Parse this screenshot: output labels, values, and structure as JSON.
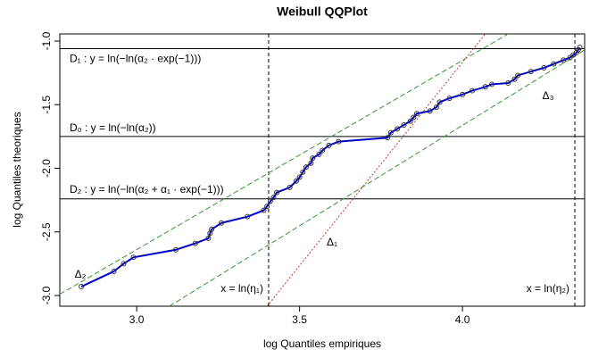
{
  "chart_data": {
    "type": "line",
    "title": "Weibull QQPlot",
    "x_label": "log Quantiles empiriques",
    "y_label": "log Quantiles theoriques",
    "xlim": [
      2.764,
      4.375
    ],
    "ylim": [
      -3.084,
      -0.944
    ],
    "xticks": [
      {
        "value": 3,
        "label": "3.0"
      },
      3.5,
      {
        "value": 4,
        "label": "4.0"
      }
    ],
    "yticks": [
      {
        "value": -1,
        "label": "-1.0"
      },
      -1.5,
      {
        "value": -2,
        "label": "-2.0"
      },
      -2.5,
      {
        "value": -3,
        "label": "-3.0"
      }
    ],
    "color": "#0000cc",
    "x": [
      2.83,
      2.93,
      2.96,
      2.99,
      3.12,
      3.18,
      3.22,
      3.225,
      3.23,
      3.26,
      3.34,
      3.39,
      3.4,
      3.41,
      3.42,
      3.43,
      3.47,
      3.49,
      3.5,
      3.51,
      3.52,
      3.535,
      3.54,
      3.56,
      3.57,
      3.59,
      3.62,
      3.77,
      3.78,
      3.8,
      3.82,
      3.84,
      3.85,
      3.86,
      3.9,
      3.92,
      3.93,
      3.96,
      4.0,
      4.03,
      4.07,
      4.09,
      4.14,
      4.16,
      4.17,
      4.21,
      4.25,
      4.28,
      4.31,
      4.33,
      4.34,
      4.35,
      4.355,
      4.36
    ],
    "values": [
      -2.93,
      -2.81,
      -2.75,
      -2.7,
      -2.64,
      -2.59,
      -2.55,
      -2.51,
      -2.48,
      -2.43,
      -2.38,
      -2.33,
      -2.3,
      -2.26,
      -2.23,
      -2.19,
      -2.15,
      -2.1,
      -2.07,
      -2.03,
      -1.99,
      -1.96,
      -1.92,
      -1.89,
      -1.86,
      -1.82,
      -1.79,
      -1.76,
      -1.72,
      -1.69,
      -1.66,
      -1.63,
      -1.6,
      -1.57,
      -1.55,
      -1.52,
      -1.48,
      -1.45,
      -1.42,
      -1.39,
      -1.36,
      -1.34,
      -1.33,
      -1.3,
      -1.27,
      -1.24,
      -1.21,
      -1.18,
      -1.15,
      -1.13,
      -1.11,
      -1.09,
      -1.07,
      -1.05
    ],
    "hlines": [
      {
        "y": -1.06,
        "label": "D₁ : y = ln(−ln(α₂ · exp(−1)))"
      },
      {
        "y": -1.75,
        "label": "D₀ : y = ln(−ln(α₂))"
      },
      {
        "y": -2.24,
        "label": "D₂ : y = ln(−ln(α₂ + α₁ · exp(−1)))"
      }
    ],
    "vlines": [
      {
        "x": 3.405,
        "label": "x = ln(η₁)"
      },
      {
        "x": 4.345,
        "label": "x = ln(η₂)"
      }
    ],
    "ablines": [
      {
        "color": "#339933",
        "x": [
          2.764,
          4.14
        ],
        "y": [
          -2.99,
          -0.944
        ],
        "label": "Δ₂"
      },
      {
        "color": "#339933",
        "x": [
          3.1,
          4.375
        ],
        "y": [
          -3.084,
          -1.07
        ],
        "label": "Δ₃"
      },
      {
        "color": "#cc3333",
        "x": [
          3.4,
          4.07
        ],
        "y": [
          -3.084,
          -0.944
        ],
        "label": "Δ₁"
      }
    ]
  }
}
